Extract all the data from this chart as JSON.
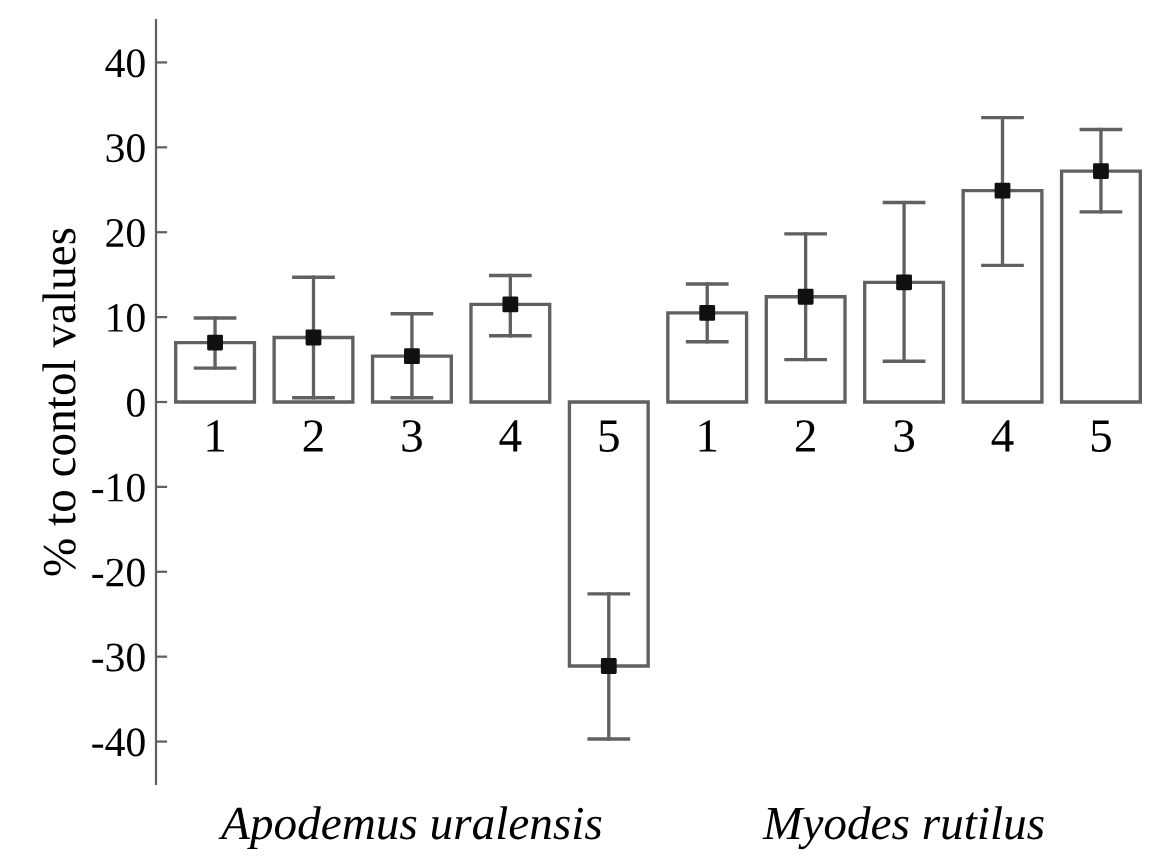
{
  "chart_data": {
    "type": "bar",
    "ylabel": "% to contol values",
    "categories": [
      "1",
      "2",
      "3",
      "4",
      "5",
      "1",
      "2",
      "3",
      "4",
      "5"
    ],
    "series": [
      {
        "color": "#ffffff",
        "values": [
          7.0,
          7.6,
          5.4,
          11.5,
          -31.1,
          10.5,
          12.4,
          14.1,
          24.9,
          27.2
        ],
        "errors": [
          [
            4.0,
            9.9
          ],
          [
            0.5,
            14.7
          ],
          [
            0.5,
            10.4
          ],
          [
            7.8,
            14.9
          ],
          [
            -39.7,
            -22.6
          ],
          [
            7.1,
            13.9
          ],
          [
            5.0,
            19.8
          ],
          [
            4.8,
            23.5
          ],
          [
            16.1,
            33.5
          ],
          [
            22.4,
            32.1
          ]
        ]
      },
      {
        "type": "scatter",
        "color": "#111111",
        "marker": "square",
        "values": [
          7.0,
          7.6,
          5.4,
          11.5,
          -31.1,
          10.5,
          12.4,
          14.1,
          24.9,
          27.2
        ]
      }
    ],
    "annotations": [
      "Apodemus uralensis",
      "Myodes rutilus"
    ],
    "ylim": [
      -45,
      45
    ],
    "yticks": [
      -40,
      -30,
      -20,
      -10,
      0,
      10,
      20,
      30,
      40
    ],
    "grid": false,
    "legend": false
  }
}
